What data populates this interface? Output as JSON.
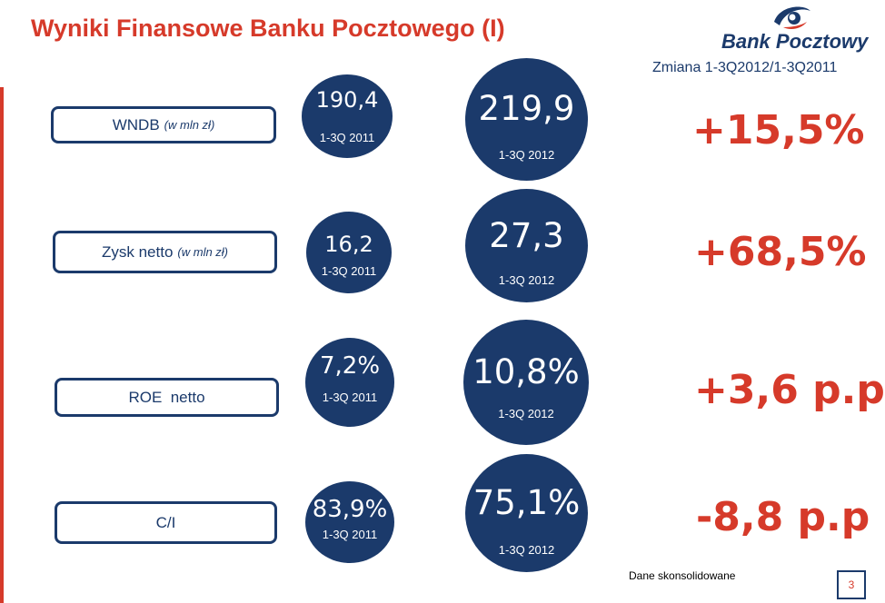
{
  "header": {
    "title": "Wyniki Finansowe Banku Pocztowego (I)",
    "logo_text": "Bank Pocztowy",
    "change_heading": "Zmiana 1-3Q2012/1-3Q2011"
  },
  "rows": [
    {
      "label": "WNDB",
      "unit": "(w mln zł)",
      "value_2011": "190,4",
      "period_2011": "1-3Q 2011",
      "value_2012": "219,9",
      "period_2012": "1-3Q 2012",
      "change": "+15,5%"
    },
    {
      "label": "Zysk netto",
      "unit": "(w mln zł)",
      "value_2011": "16,2",
      "period_2011": "1-3Q 2011",
      "value_2012": "27,3",
      "period_2012": "1-3Q 2012",
      "change": "+68,5%"
    },
    {
      "label": "ROE  netto",
      "unit": "",
      "value_2011": "7,2%",
      "period_2011": "1-3Q 2011",
      "value_2012": "10,8%",
      "period_2012": "1-3Q 2012",
      "change": "+3,6 p.p"
    },
    {
      "label": "C/I",
      "unit": "",
      "value_2011": "83,9%",
      "period_2011": "1-3Q 2011",
      "value_2012": "75,1%",
      "period_2012": "1-3Q 2012",
      "change": "-8,8 p.p"
    }
  ],
  "footer": {
    "note": "Dane skonsolidowane",
    "page_number": "3"
  },
  "colors": {
    "title_red": "#d63a2a",
    "navy": "#1b3a6b",
    "background": "#ffffff"
  }
}
